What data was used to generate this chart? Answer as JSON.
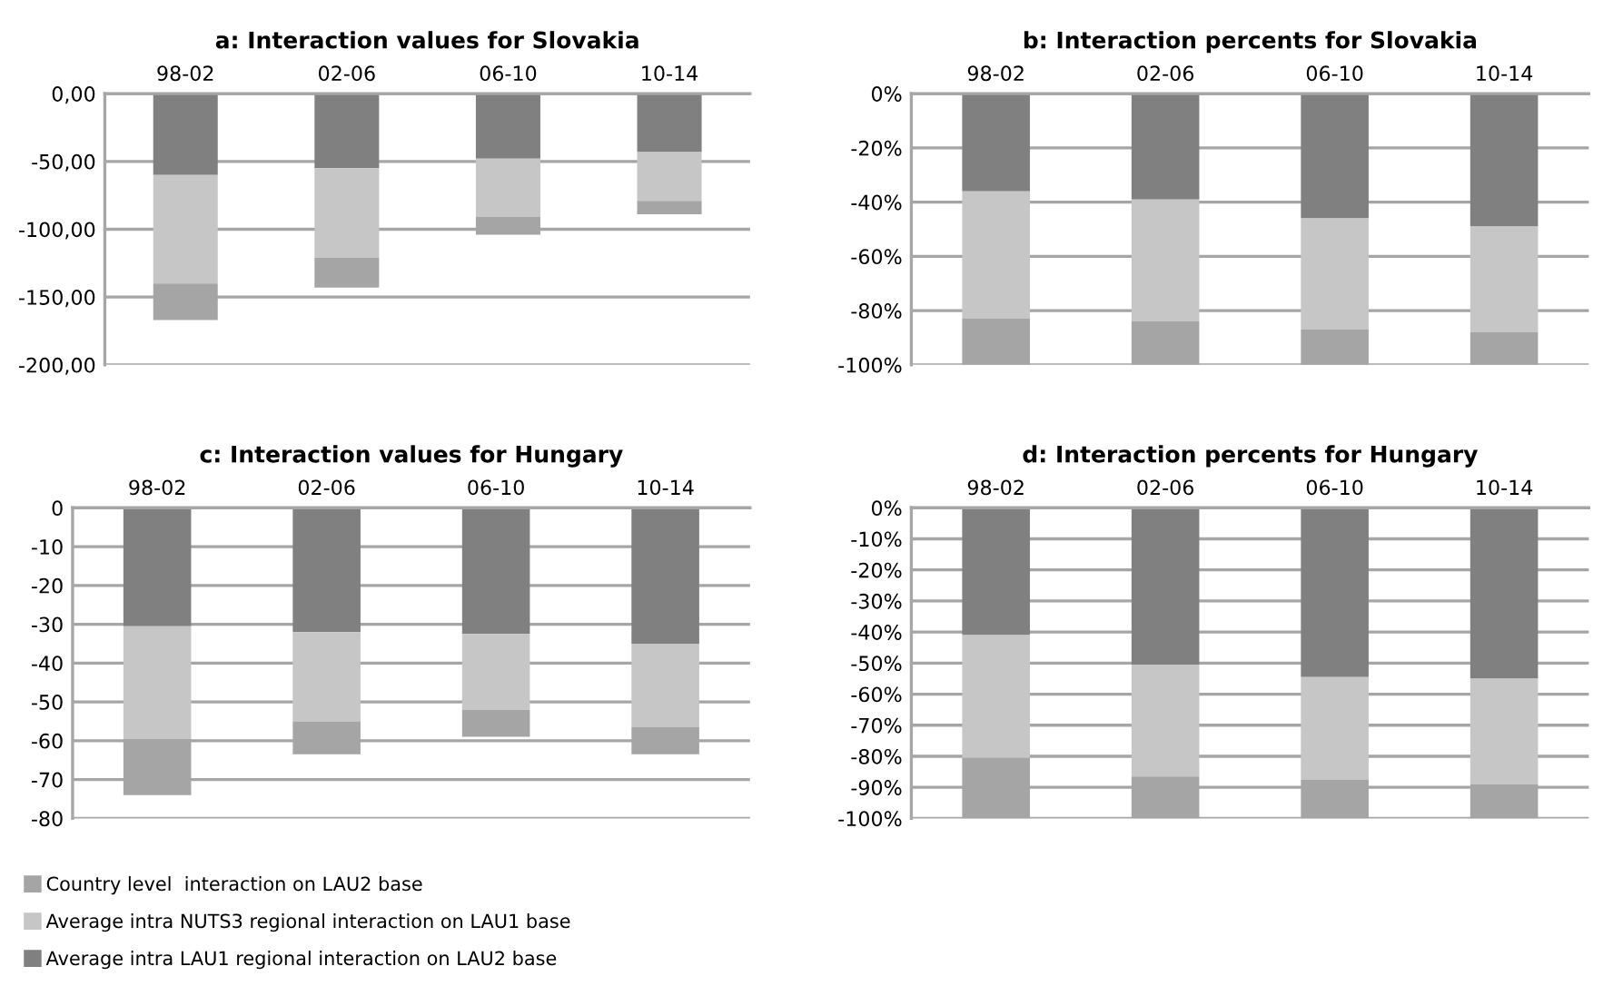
{
  "chart_data": [
    {
      "type": "bar",
      "title": "a: Interaction values for Slovakia",
      "categories": [
        "98-02",
        "02-06",
        "06-10",
        "10-14"
      ],
      "stacked": true,
      "grid": "y",
      "legend": false,
      "ylim": [
        -200,
        0
      ],
      "yticks": [
        {
          "value": 0,
          "label": "0,00"
        },
        {
          "value": -50,
          "label": "-50,00"
        },
        {
          "value": -100,
          "label": "-100,00"
        },
        {
          "value": -150,
          "label": "-150,00"
        },
        {
          "value": -200,
          "label": "-200,00"
        }
      ],
      "series": [
        {
          "color": "#808080",
          "values": [
            -60,
            -55,
            -48,
            -43
          ]
        },
        {
          "color": "#c6c6c6",
          "values": [
            -80,
            -66,
            -43,
            -36
          ]
        },
        {
          "color": "#a5a5a5",
          "values": [
            -27,
            -22,
            -13,
            -10
          ]
        }
      ]
    },
    {
      "type": "bar",
      "title": "b: Interaction percents for Slovakia",
      "categories": [
        "98-02",
        "02-06",
        "06-10",
        "10-14"
      ],
      "stacked": true,
      "grid": "y",
      "legend": false,
      "ylim": [
        -100,
        0
      ],
      "yticks": [
        {
          "value": 0,
          "label": "0%"
        },
        {
          "value": -20,
          "label": "-20%"
        },
        {
          "value": -40,
          "label": "-40%"
        },
        {
          "value": -60,
          "label": "-60%"
        },
        {
          "value": -80,
          "label": "-80%"
        },
        {
          "value": -100,
          "label": "-100%"
        }
      ],
      "series": [
        {
          "color": "#808080",
          "values": [
            -36,
            -39,
            -46,
            -49
          ]
        },
        {
          "color": "#c6c6c6",
          "values": [
            -47,
            -45,
            -41,
            -39
          ]
        },
        {
          "color": "#a5a5a5",
          "values": [
            -17,
            -16,
            -13,
            -12
          ]
        }
      ]
    },
    {
      "type": "bar",
      "title": "c: Interaction values for Hungary",
      "categories": [
        "98-02",
        "02-06",
        "06-10",
        "10-14"
      ],
      "stacked": true,
      "grid": "y",
      "legend": "bottom left",
      "ylim": [
        -80,
        0
      ],
      "yticks": [
        0,
        -10,
        -20,
        -30,
        -40,
        -50,
        -60,
        -70,
        -80
      ],
      "series": [
        {
          "name": "Average intra LAU1 regional interaction on LAU2 base",
          "color": "#808080",
          "values": [
            -30.5,
            -32,
            -32.5,
            -35
          ]
        },
        {
          "name": "Average intra NUTS3 regional interaction on LAU1 base",
          "color": "#c6c6c6",
          "values": [
            -29,
            -23,
            -19.5,
            -21.5
          ]
        },
        {
          "name": "Country level  interaction on LAU2 base",
          "color": "#a5a5a5",
          "values": [
            -14.5,
            -8.5,
            -7,
            -7
          ]
        }
      ]
    },
    {
      "type": "bar",
      "title": "d: Interaction percents for Hungary",
      "categories": [
        "98-02",
        "02-06",
        "06-10",
        "10-14"
      ],
      "stacked": true,
      "grid": "y",
      "legend": false,
      "ylim": [
        -100,
        0
      ],
      "yticks": [
        {
          "value": 0,
          "label": "0%"
        },
        {
          "value": -10,
          "label": "-10%"
        },
        {
          "value": -20,
          "label": "-20%"
        },
        {
          "value": -30,
          "label": "-30%"
        },
        {
          "value": -40,
          "label": "-40%"
        },
        {
          "value": -50,
          "label": "-50%"
        },
        {
          "value": -60,
          "label": "-60%"
        },
        {
          "value": -70,
          "label": "-70%"
        },
        {
          "value": -80,
          "label": "-80%"
        },
        {
          "value": -90,
          "label": "-90%"
        },
        {
          "value": -100,
          "label": "-100%"
        }
      ],
      "series": [
        {
          "color": "#808080",
          "values": [
            -41,
            -50.5,
            -54.5,
            -55
          ]
        },
        {
          "color": "#c6c6c6",
          "values": [
            -39.5,
            -36,
            -33,
            -34
          ]
        },
        {
          "color": "#a5a5a5",
          "values": [
            -19.5,
            -13.5,
            -12.5,
            -11
          ]
        }
      ]
    }
  ]
}
